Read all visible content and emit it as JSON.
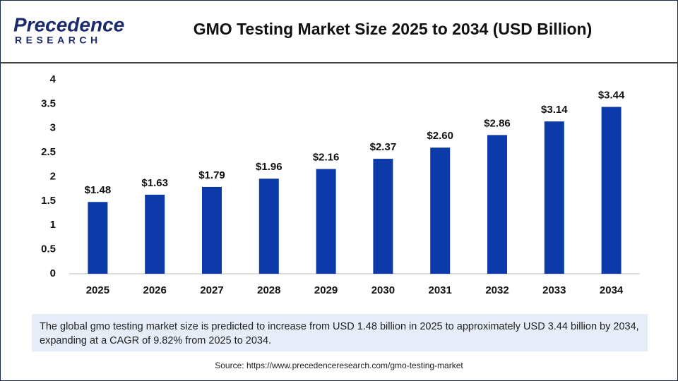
{
  "logo": {
    "name": "Precedence",
    "tagline": "RESEARCH"
  },
  "chart_data": {
    "type": "bar",
    "title": "GMO Testing Market Size 2025 to 2034 (USD Billion)",
    "categories": [
      "2025",
      "2026",
      "2027",
      "2028",
      "2029",
      "2030",
      "2031",
      "2032",
      "2033",
      "2034"
    ],
    "values": [
      1.48,
      1.63,
      1.79,
      1.96,
      2.16,
      2.37,
      2.6,
      2.86,
      3.14,
      3.44
    ],
    "value_labels": [
      "$1.48",
      "$1.63",
      "$1.79",
      "$1.96",
      "$2.16",
      "$2.37",
      "$2.60",
      "$2.86",
      "$3.14",
      "$3.44"
    ],
    "color": "#0d3aa9",
    "ylim": [
      0,
      4
    ],
    "yticks": [
      0,
      0.5,
      1,
      1.5,
      2,
      2.5,
      3,
      3.5,
      4
    ],
    "grid": false
  },
  "caption": "The global gmo testing market size is predicted to increase from USD 1.48 billion in 2025 to approximately USD 3.44 billion by 2034, expanding at a CAGR of 9.82% from 2025 to 2034.",
  "source": "Source: https://www.precedenceresearch.com/gmo-testing-market"
}
